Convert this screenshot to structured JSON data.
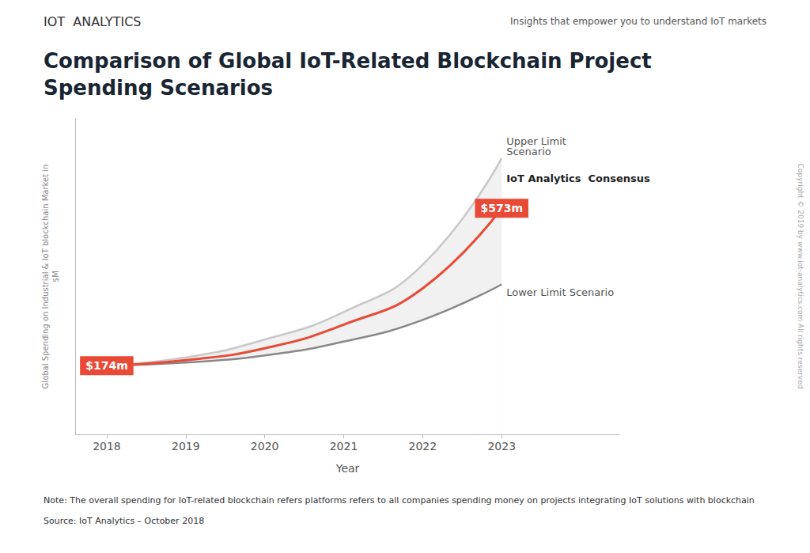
{
  "chart_data": {
    "type": "line",
    "title": "Comparison of Global IoT-Related Blockchain Project\nSpending Scenarios",
    "subtitle": "Insights that empower you to understand IoT markets",
    "header": "IOT  ANALYTICS",
    "xlabel": "Year",
    "ylabel": "Global Spending on Industrial & IoT blockchain Market in\n$M",
    "note": "Note: The overall spending for IoT-related blockchain refers platforms refers to all companies spending money on projects integrating IoT solutions with blockchain",
    "source": "Source: IoT Analytics – October 2018",
    "copyright": "Copyright © 2019 by www.iot-analytics.com All rights reserved",
    "x": [
      2018,
      2019,
      2020,
      2021,
      2022,
      2023
    ],
    "series": [
      {
        "name": "Upper Limit\nScenario",
        "color": "#c8c8c8",
        "values": [
          174,
          195,
          240,
          310,
          430,
          700
        ]
      },
      {
        "name": "Lower Limit Scenario",
        "color": "#888888",
        "values": [
          174,
          182,
          200,
          235,
          290,
          380
        ]
      },
      {
        "name": "IoT Analytics  Consensus",
        "color": "#e84a36",
        "values": [
          174,
          188,
          218,
          278,
          370,
          573
        ]
      }
    ],
    "annotations": [
      {
        "text": "$174m",
        "x": 2018,
        "y": 174,
        "color": "#e84a36"
      },
      {
        "text": "$573m",
        "x": 2023,
        "y": 573,
        "color": "#e84a36"
      }
    ],
    "xlim": [
      2017.6,
      2024.5
    ],
    "xticks": [
      2018,
      2019,
      2020,
      2021,
      2022,
      2023
    ],
    "ylim": [
      0,
      800
    ],
    "yticks": [],
    "tick_labels": "x",
    "grid": false
  }
}
